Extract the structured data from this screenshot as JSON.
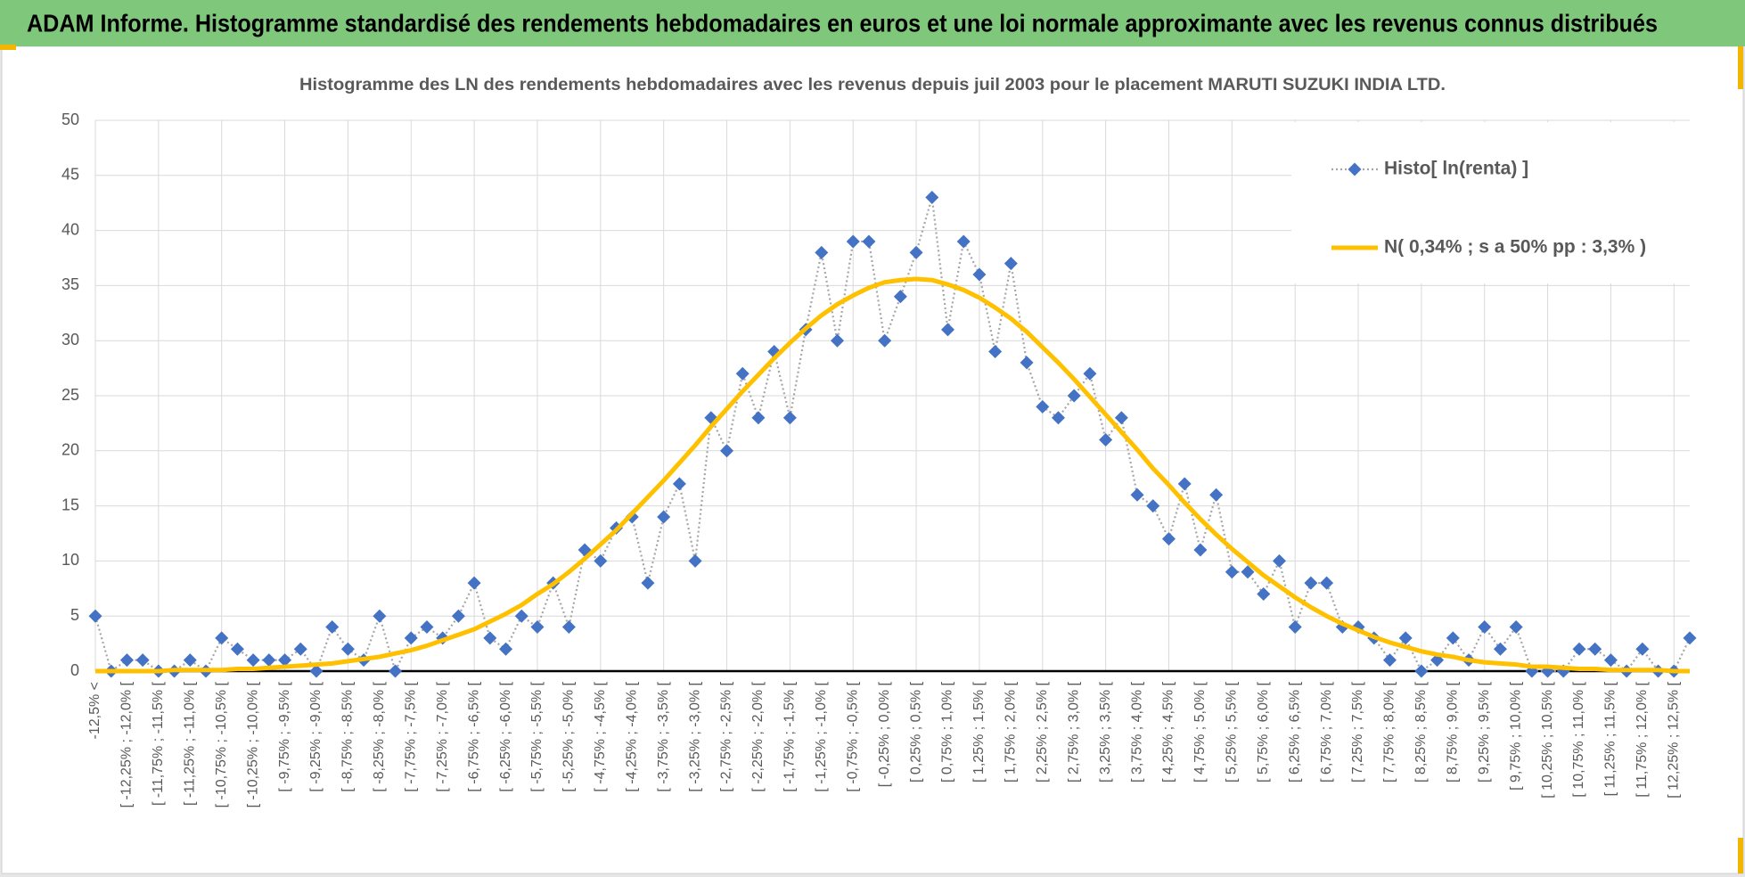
{
  "header": {
    "title": "ADAM Informe. Histogramme standardisé des rendements hebdomadaires en euros et une loi normale approximante avec les revenus connus distribués"
  },
  "chart_data": {
    "type": "line",
    "title": "Histogramme des LN des rendements hebdomadaires avec les revenus depuis juil 2003 pour le placement MARUTI SUZUKI INDIA LTD.",
    "categories": [
      "-12,5% <",
      null,
      "[ -12,25% ; -12,0% [",
      null,
      "[ -11,75% ; -11,5% [",
      null,
      "[ -11,25% ; -11,0% [",
      null,
      "[ -10,75% ; -10,5% [",
      null,
      "[ -10,25% ; -10,0% [",
      null,
      "[ -9,75% ; -9,5% [",
      null,
      "[ -9,25% ; -9,0% [",
      null,
      "[ -8,75% ; -8,5% [",
      null,
      "[ -8,25% ; -8,0% [",
      null,
      "[ -7,75% ; -7,5% [",
      null,
      "[ -7,25% ; -7,0% [",
      null,
      "[ -6,75% ; -6,5% [",
      null,
      "[ -6,25% ; -6,0% [",
      null,
      "[ -5,75% ; -5,5% [",
      null,
      "[ -5,25% ; -5,0% [",
      null,
      "[ -4,75% ; -4,5% [",
      null,
      "[ -4,25% ; -4,0% [",
      null,
      "[ -3,75% ; -3,5% [",
      null,
      "[ -3,25% ; -3,0% [",
      null,
      "[ -2,75% ; -2,5% [",
      null,
      "[ -2,25% ; -2,0% [",
      null,
      "[ -1,75% ; -1,5% [",
      null,
      "[ -1,25% ; -1,0% [",
      null,
      "[ -0,75% ; -0,5% [",
      null,
      "[ -0,25% ; 0,0% [",
      null,
      "[ 0,25% ; 0,5% [",
      null,
      "[ 0,75% ; 1,0% [",
      null,
      "[ 1,25% ; 1,5% [",
      null,
      "[ 1,75% ; 2,0% [",
      null,
      "[ 2,25% ; 2,5% [",
      null,
      "[ 2,75% ; 3,0% [",
      null,
      "[ 3,25% ; 3,5% [",
      null,
      "[ 3,75% ; 4,0% [",
      null,
      "[ 4,25% ; 4,5% [",
      null,
      "[ 4,75% ; 5,0% [",
      null,
      "[ 5,25% ; 5,5% [",
      null,
      "[ 5,75% ; 6,0% [",
      null,
      "[ 6,25% ; 6,5% [",
      null,
      "[ 6,75% ; 7,0% [",
      null,
      "[ 7,25% ; 7,5% [",
      null,
      "[ 7,75% ; 8,0% [",
      null,
      "[ 8,25% ; 8,5% [",
      null,
      "[ 8,75% ; 9,0% [",
      null,
      "[ 9,25% ; 9,5% [",
      null,
      "[ 9,75% ; 10,0% [",
      null,
      "[ 10,25% ; 10,5% [",
      null,
      "[ 10,75% ; 11,0% [",
      null,
      "[ 11,25% ; 11,5% [",
      null,
      "[ 11,75% ; 12,0% [",
      null,
      "[ 12,25% ; 12,5% [",
      null
    ],
    "series": [
      {
        "name": "Histo[ ln(renta) ]",
        "color": "#4472c4",
        "line_color": "#a6a6a6",
        "values": [
          5,
          0,
          1,
          1,
          0,
          0,
          1,
          0,
          3,
          2,
          1,
          1,
          1,
          2,
          0,
          4,
          2,
          1,
          5,
          0,
          3,
          4,
          3,
          5,
          8,
          3,
          2,
          5,
          4,
          8,
          4,
          11,
          10,
          13,
          14,
          8,
          14,
          17,
          10,
          23,
          20,
          27,
          23,
          29,
          23,
          31,
          38,
          30,
          39,
          39,
          30,
          34,
          38,
          43,
          31,
          39,
          36,
          29,
          37,
          28,
          24,
          23,
          25,
          27,
          21,
          23,
          16,
          15,
          12,
          17,
          11,
          16,
          9,
          9,
          7,
          10,
          4,
          8,
          8,
          4,
          4,
          3,
          1,
          3,
          0,
          1,
          3,
          1,
          4,
          2,
          4,
          0,
          0,
          0,
          2,
          2,
          1,
          0,
          2,
          0,
          0,
          3
        ]
      },
      {
        "name": "N( 0,34% ; s a 50% pp : 3,3% )",
        "color": "#ffc000",
        "values": [
          0,
          0,
          0,
          0,
          0,
          0.1,
          0.1,
          0.1,
          0.1,
          0.2,
          0.2,
          0.3,
          0.4,
          0.5,
          0.6,
          0.7,
          0.9,
          1.1,
          1.3,
          1.6,
          1.9,
          2.3,
          2.8,
          3.3,
          3.8,
          4.5,
          5.2,
          6,
          7,
          7.9,
          9,
          10.2,
          11.5,
          12.8,
          14.3,
          15.8,
          17.3,
          18.9,
          20.5,
          22.2,
          23.8,
          25.4,
          26.9,
          28.4,
          29.8,
          31.1,
          32.3,
          33.3,
          34.1,
          34.8,
          35.3,
          35.5,
          35.6,
          35.5,
          35.1,
          34.6,
          33.9,
          33,
          32,
          30.8,
          29.4,
          28,
          26.5,
          24.9,
          23.3,
          21.7,
          20.1,
          18.4,
          16.9,
          15.3,
          13.8,
          12.4,
          11.1,
          9.9,
          8.7,
          7.7,
          6.7,
          5.8,
          5,
          4.3,
          3.7,
          3.1,
          2.6,
          2.2,
          1.8,
          1.5,
          1.3,
          1,
          0.8,
          0.7,
          0.6,
          0.4,
          0.4,
          0.3,
          0.2,
          0.2,
          0.1,
          0.1,
          0.1,
          0.1,
          0,
          0
        ]
      }
    ],
    "ylim": [
      0,
      50
    ],
    "yticks": [
      0,
      5,
      10,
      15,
      20,
      25,
      30,
      35,
      40,
      45,
      50
    ],
    "grid": true,
    "legend": "upper right"
  }
}
